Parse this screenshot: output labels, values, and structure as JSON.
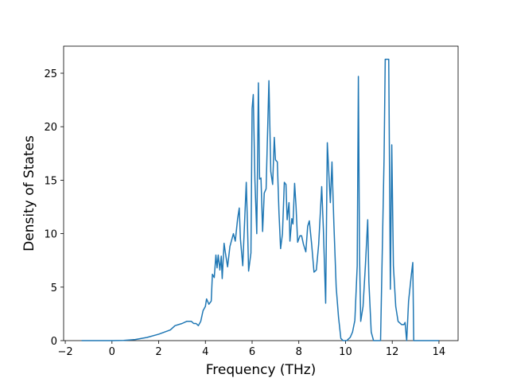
{
  "chart_data": {
    "type": "line",
    "xlabel": "Frequency (THz)",
    "ylabel": "Density of States",
    "xlim": [
      -2.07,
      14.82
    ],
    "ylim": [
      0,
      27.53
    ],
    "xticks": [
      {
        "value": -2,
        "label": "−2"
      },
      0,
      2,
      4,
      6,
      8,
      10,
      12,
      14
    ],
    "yticks": [
      0,
      5,
      10,
      15,
      20,
      25
    ],
    "color": "#1f77b4",
    "x": [
      -1.3,
      0,
      0.5,
      1,
      1.5,
      2,
      2.5,
      2.7,
      3,
      3.2,
      3.4,
      3.5,
      3.6,
      3.7,
      3.8,
      3.9,
      4,
      4.05,
      4.15,
      4.25,
      4.3,
      4.38,
      4.45,
      4.5,
      4.55,
      4.62,
      4.68,
      4.72,
      4.8,
      4.85,
      4.95,
      5.05,
      5.2,
      5.28,
      5.38,
      5.45,
      5.5,
      5.6,
      5.75,
      5.8,
      5.85,
      5.95,
      6.0,
      6.05,
      6.12,
      6.2,
      6.27,
      6.32,
      6.38,
      6.45,
      6.52,
      6.6,
      6.72,
      6.8,
      6.88,
      6.95,
      7.0,
      7.08,
      7.15,
      7.22,
      7.3,
      7.38,
      7.45,
      7.5,
      7.58,
      7.62,
      7.7,
      7.75,
      7.82,
      7.88,
      7.95,
      8.05,
      8.12,
      8.2,
      8.3,
      8.38,
      8.45,
      8.55,
      8.65,
      8.75,
      8.85,
      8.98,
      9.05,
      9.15,
      9.22,
      9.3,
      9.35,
      9.42,
      9.5,
      9.6,
      9.7,
      9.8,
      9.9,
      10.05,
      10.2,
      10.3,
      10.4,
      10.5,
      10.55,
      10.6,
      10.65,
      10.75,
      10.85,
      10.95,
      11.0,
      11.1,
      11.2,
      11.5,
      11.65,
      11.7,
      11.85,
      11.92,
      11.98,
      12.05,
      12.15,
      12.25,
      12.4,
      12.5,
      12.55,
      12.6,
      12.62,
      12.7,
      12.82,
      12.88,
      12.92,
      14
    ],
    "values": [
      0,
      0,
      0.02,
      0.1,
      0.3,
      0.6,
      1.0,
      1.4,
      1.6,
      1.8,
      1.8,
      1.6,
      1.6,
      1.4,
      1.8,
      2.8,
      3.2,
      3.9,
      3.4,
      3.7,
      6.2,
      5.9,
      8.0,
      6.8,
      8.0,
      6.6,
      7.9,
      5.8,
      9.1,
      8.3,
      6.9,
      8.8,
      10.0,
      9.3,
      11.4,
      12.4,
      9.5,
      7.0,
      14.8,
      11.0,
      6.5,
      8.2,
      21.7,
      23.0,
      15.0,
      10.0,
      24.1,
      15.1,
      15.2,
      10.2,
      13.8,
      14.2,
      24.3,
      15.8,
      14.6,
      19.0,
      16.9,
      16.7,
      12.0,
      8.6,
      10.0,
      14.8,
      14.6,
      11.3,
      12.9,
      9.3,
      11.4,
      10.9,
      14.7,
      12.6,
      9.2,
      9.8,
      9.8,
      9.0,
      8.3,
      10.7,
      11.2,
      9.0,
      6.4,
      6.6,
      9.0,
      14.4,
      10.5,
      3.5,
      18.5,
      15.0,
      12.9,
      16.7,
      11.0,
      5.0,
      2.2,
      0.2,
      0,
      0,
      0.3,
      0.8,
      1.9,
      7.0,
      24.7,
      8.0,
      1.8,
      3.2,
      7.0,
      11.3,
      5.5,
      0.8,
      0,
      0,
      17.0,
      26.3,
      26.3,
      4.8,
      18.3,
      7.0,
      3.2,
      1.8,
      1.5,
      1.5,
      1.7,
      0.4,
      0,
      3.7,
      6.2,
      7.3,
      0,
      0
    ]
  }
}
